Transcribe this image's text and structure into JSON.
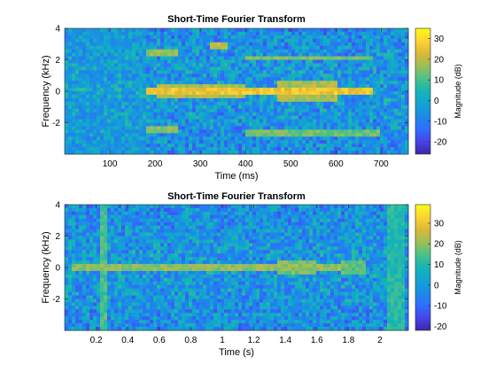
{
  "colors": {
    "colormap": [
      "#3e26a8",
      "#4744e8",
      "#2e6ffd",
      "#1c8ae7",
      "#13a3d4",
      "#14b5b5",
      "#4bc189",
      "#9bbf59",
      "#dbb838",
      "#fdd335",
      "#f9fb15"
    ],
    "axes": "#262626"
  },
  "chart_data": [
    {
      "type": "heatmap",
      "title": "Short-Time Fourier Transform",
      "xlabel": "Time (ms)",
      "ylabel": "Frequency (kHz)",
      "xlim": [
        0,
        760
      ],
      "ylim": [
        -4,
        4
      ],
      "x_ticks": [
        100,
        200,
        300,
        400,
        500,
        600,
        700
      ],
      "y_ticks": [
        -2,
        0,
        2,
        4
      ],
      "colorbar": {
        "label": "Magnitude (dB)",
        "range": [
          -26,
          35
        ],
        "ticks": [
          -20,
          -10,
          0,
          10,
          20,
          30
        ]
      },
      "grid": false,
      "regions": [
        {
          "t": [
            0,
            180
          ],
          "f": [
            -4,
            4
          ],
          "db": -4
        },
        {
          "t": [
            180,
            680
          ],
          "f": [
            -0.2,
            0.2
          ],
          "db": 30
        },
        {
          "t": [
            200,
            400
          ],
          "f": [
            -0.5,
            0.5
          ],
          "db": 22
        },
        {
          "t": [
            320,
            360
          ],
          "f": [
            2.7,
            3.2
          ],
          "db": 24
        },
        {
          "t": [
            180,
            250
          ],
          "f": [
            2.2,
            2.6
          ],
          "db": 20
        },
        {
          "t": [
            180,
            250
          ],
          "f": [
            -2.6,
            -2.2
          ],
          "db": 20
        },
        {
          "t": [
            400,
            680
          ],
          "f": [
            2,
            2.3
          ],
          "db": 18
        },
        {
          "t": [
            400,
            700
          ],
          "f": [
            -2.8,
            -2.4
          ],
          "db": 17
        },
        {
          "t": [
            470,
            600
          ],
          "f": [
            -0.6,
            0.6
          ],
          "db": 22
        }
      ]
    },
    {
      "type": "heatmap",
      "title": "Short-Time Fourier Transform",
      "xlabel": "Time (s)",
      "ylabel": "Frequency (kHz)",
      "xlim": [
        0,
        2.18
      ],
      "ylim": [
        -4,
        4
      ],
      "x_ticks": [
        0.2,
        0.4,
        0.6,
        0.8,
        1,
        1.2,
        1.4,
        1.6,
        1.8,
        2
      ],
      "y_ticks": [
        -2,
        0,
        2,
        4
      ],
      "colorbar": {
        "label": "Magnitude (dB)",
        "range": [
          -22,
          39
        ],
        "ticks": [
          -20,
          -10,
          0,
          10,
          20,
          30
        ]
      },
      "grid": false,
      "regions": [
        {
          "t": [
            0.22,
            0.27
          ],
          "f": [
            -4,
            4
          ],
          "db": 18
        },
        {
          "t": [
            0.05,
            1.75
          ],
          "f": [
            -0.2,
            0.2
          ],
          "db": 24
        },
        {
          "t": [
            1.35,
            1.6
          ],
          "f": [
            -0.5,
            0.5
          ],
          "db": 22
        },
        {
          "t": [
            1.75,
            1.9
          ],
          "f": [
            -0.4,
            0.4
          ],
          "db": 20
        },
        {
          "t": [
            2.05,
            2.15
          ],
          "f": [
            -4,
            4
          ],
          "db": 14
        }
      ]
    }
  ]
}
